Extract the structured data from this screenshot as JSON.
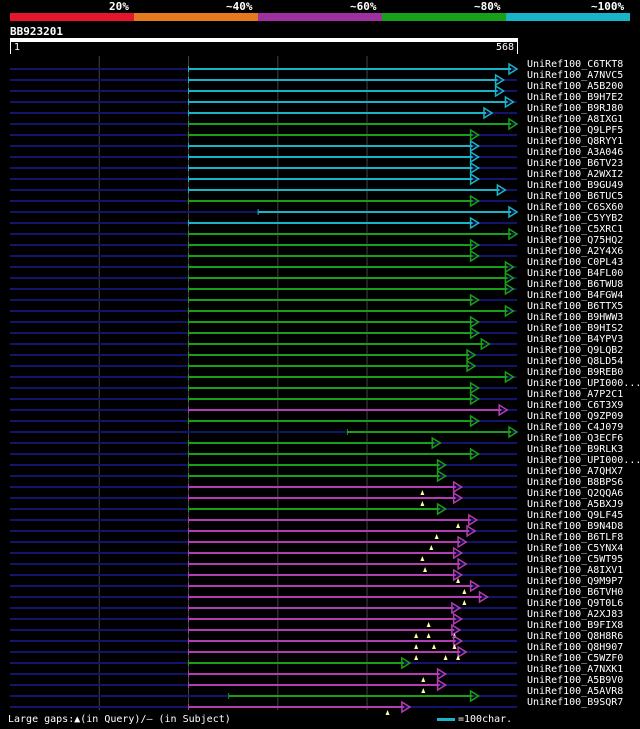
{
  "query": {
    "id": "BB923201",
    "length": 568,
    "start_label": "1",
    "end_label": "568"
  },
  "legend": [
    {
      "label": "20%",
      "color": "#e6162a"
    },
    {
      "label": "~40%",
      "color": "#e6781e"
    },
    {
      "label": "~60%",
      "color": "#a030a0"
    },
    {
      "label": "~80%",
      "color": "#19a019"
    },
    {
      "label": "~100%",
      "color": "#19b4c8"
    }
  ],
  "hits": [
    {
      "name": "UniRef100_C6TKT8",
      "start": 200,
      "end": 568,
      "color": "cyan",
      "gaps": []
    },
    {
      "name": "UniRef100_A7NVC5",
      "start": 200,
      "end": 553,
      "color": "cyan",
      "gaps": []
    },
    {
      "name": "UniRef100_A5B200",
      "start": 200,
      "end": 553,
      "color": "cyan",
      "gaps": []
    },
    {
      "name": "UniRef100_B9H7E2",
      "start": 200,
      "end": 564,
      "color": "cyan",
      "gaps": []
    },
    {
      "name": "UniRef100_B9RJ80",
      "start": 200,
      "end": 540,
      "color": "cyan",
      "gaps": []
    },
    {
      "name": "UniRef100_A8IXG1",
      "start": 200,
      "end": 568,
      "color": "green",
      "gaps": []
    },
    {
      "name": "UniRef100_Q9LPF5",
      "start": 200,
      "end": 525,
      "color": "green",
      "gaps": []
    },
    {
      "name": "UniRef100_Q8RYY1",
      "start": 200,
      "end": 525,
      "color": "cyan",
      "gaps": []
    },
    {
      "name": "UniRef100_A3A046",
      "start": 200,
      "end": 525,
      "color": "cyan",
      "gaps": []
    },
    {
      "name": "UniRef100_B6TV23",
      "start": 200,
      "end": 525,
      "color": "cyan",
      "gaps": []
    },
    {
      "name": "UniRef100_A2WXI2",
      "start": 200,
      "end": 525,
      "color": "cyan",
      "gaps": []
    },
    {
      "name": "UniRef100_B9GU49",
      "start": 200,
      "end": 555,
      "color": "cyan",
      "gaps": []
    },
    {
      "name": "UniRef100_B6TUC5",
      "start": 200,
      "end": 525,
      "color": "green",
      "gaps": []
    },
    {
      "name": "UniRef100_C6SX60",
      "start": 278,
      "end": 568,
      "color": "cyan",
      "gaps": []
    },
    {
      "name": "UniRef100_C5YYB2",
      "start": 200,
      "end": 525,
      "color": "cyan",
      "gaps": []
    },
    {
      "name": "UniRef100_C5XRC1",
      "start": 200,
      "end": 568,
      "color": "green",
      "gaps": []
    },
    {
      "name": "UniRef100_Q75HQ2",
      "start": 200,
      "end": 525,
      "color": "green",
      "gaps": []
    },
    {
      "name": "UniRef100_A2Y4X6",
      "start": 200,
      "end": 525,
      "color": "green",
      "gaps": []
    },
    {
      "name": "UniRef100_C0PL43",
      "start": 200,
      "end": 564,
      "color": "green",
      "gaps": []
    },
    {
      "name": "UniRef100_B4FL00",
      "start": 200,
      "end": 564,
      "color": "green",
      "gaps": []
    },
    {
      "name": "UniRef100_B6TWU8",
      "start": 200,
      "end": 564,
      "color": "green",
      "gaps": []
    },
    {
      "name": "UniRef100_B4FGW4",
      "start": 200,
      "end": 525,
      "color": "green",
      "gaps": []
    },
    {
      "name": "UniRef100_B6TTX5",
      "start": 200,
      "end": 564,
      "color": "green",
      "gaps": []
    },
    {
      "name": "UniRef100_B9HWW3",
      "start": 200,
      "end": 525,
      "color": "green",
      "gaps": []
    },
    {
      "name": "UniRef100_B9HIS2",
      "start": 200,
      "end": 525,
      "color": "green",
      "gaps": []
    },
    {
      "name": "UniRef100_B4YPV3",
      "start": 200,
      "end": 537,
      "color": "green",
      "gaps": []
    },
    {
      "name": "UniRef100_Q9LQB2",
      "start": 200,
      "end": 521,
      "color": "green",
      "gaps": []
    },
    {
      "name": "UniRef100_Q8LD54",
      "start": 200,
      "end": 521,
      "color": "green",
      "gaps": []
    },
    {
      "name": "UniRef100_B9REB0",
      "start": 200,
      "end": 564,
      "color": "green",
      "gaps": []
    },
    {
      "name": "UniRef100_UPI000...",
      "start": 200,
      "end": 525,
      "color": "green",
      "gaps": []
    },
    {
      "name": "UniRef100_A7P2C1",
      "start": 200,
      "end": 525,
      "color": "green",
      "gaps": []
    },
    {
      "name": "UniRef100_C6T3X9",
      "start": 200,
      "end": 557,
      "color": "magenta",
      "gaps": []
    },
    {
      "name": "UniRef100_Q9ZP09",
      "start": 200,
      "end": 525,
      "color": "green",
      "gaps": []
    },
    {
      "name": "UniRef100_C4J079",
      "start": 378,
      "end": 568,
      "color": "green",
      "gaps": []
    },
    {
      "name": "UniRef100_Q3ECF6",
      "start": 200,
      "end": 482,
      "color": "green",
      "gaps": []
    },
    {
      "name": "UniRef100_B9RLK3",
      "start": 200,
      "end": 525,
      "color": "green",
      "gaps": []
    },
    {
      "name": "UniRef100_UPI000...",
      "start": 200,
      "end": 488,
      "color": "green",
      "gaps": []
    },
    {
      "name": "UniRef100_A7QHX7",
      "start": 200,
      "end": 488,
      "color": "green",
      "gaps": []
    },
    {
      "name": "UniRef100_B8BPS6",
      "start": 200,
      "end": 506,
      "color": "magenta",
      "gaps": [
        462
      ]
    },
    {
      "name": "UniRef100_Q2QQA6",
      "start": 200,
      "end": 506,
      "color": "magenta",
      "gaps": [
        462
      ]
    },
    {
      "name": "UniRef100_A5BXJ9",
      "start": 200,
      "end": 488,
      "color": "green",
      "gaps": []
    },
    {
      "name": "UniRef100_Q9LF45",
      "start": 200,
      "end": 523,
      "color": "magenta",
      "gaps": [
        502
      ]
    },
    {
      "name": "UniRef100_B9N4D8",
      "start": 200,
      "end": 521,
      "color": "magenta",
      "gaps": [
        478
      ]
    },
    {
      "name": "UniRef100_B6TLF8",
      "start": 200,
      "end": 511,
      "color": "magenta",
      "gaps": [
        472
      ]
    },
    {
      "name": "UniRef100_C5YNX4",
      "start": 200,
      "end": 506,
      "color": "magenta",
      "gaps": [
        462
      ]
    },
    {
      "name": "UniRef100_C5WT95",
      "start": 200,
      "end": 511,
      "color": "magenta",
      "gaps": [
        465
      ]
    },
    {
      "name": "UniRef100_A8IXV1",
      "start": 200,
      "end": 506,
      "color": "magenta",
      "gaps": [
        502
      ]
    },
    {
      "name": "UniRef100_Q9M9P7",
      "start": 200,
      "end": 525,
      "color": "magenta",
      "gaps": [
        509
      ]
    },
    {
      "name": "UniRef100_B6TVH0",
      "start": 200,
      "end": 535,
      "color": "magenta",
      "gaps": [
        509
      ]
    },
    {
      "name": "UniRef100_Q9T0L6",
      "start": 200,
      "end": 504,
      "color": "magenta",
      "gaps": []
    },
    {
      "name": "UniRef100_A2XJ83",
      "start": 200,
      "end": 506,
      "color": "magenta",
      "gaps": [
        469
      ]
    },
    {
      "name": "UniRef100_B9FIX8",
      "start": 200,
      "end": 504,
      "color": "magenta",
      "gaps": [
        455,
        469,
        498
      ]
    },
    {
      "name": "UniRef100_Q8H8R6",
      "start": 200,
      "end": 506,
      "color": "magenta",
      "gaps": [
        455,
        475,
        498
      ]
    },
    {
      "name": "UniRef100_Q8H907",
      "start": 200,
      "end": 511,
      "color": "magenta",
      "gaps": [
        455,
        488,
        502
      ]
    },
    {
      "name": "UniRef100_C5WZF0",
      "start": 200,
      "end": 448,
      "color": "green",
      "gaps": []
    },
    {
      "name": "UniRef100_A7NXK1",
      "start": 200,
      "end": 488,
      "color": "magenta",
      "gaps": [
        463
      ]
    },
    {
      "name": "UniRef100_A5B9V0",
      "start": 200,
      "end": 488,
      "color": "magenta",
      "gaps": [
        463
      ]
    },
    {
      "name": "UniRef100_A5AVR8",
      "start": 245,
      "end": 525,
      "color": "green",
      "gaps": []
    },
    {
      "name": "UniRef100_B9SQR7",
      "start": 200,
      "end": 448,
      "color": "magenta",
      "gaps": [
        423
      ]
    }
  ],
  "footer": {
    "text": "Large gaps:▲(in Query)/– (in Subject)",
    "scale_text": "=100char."
  }
}
